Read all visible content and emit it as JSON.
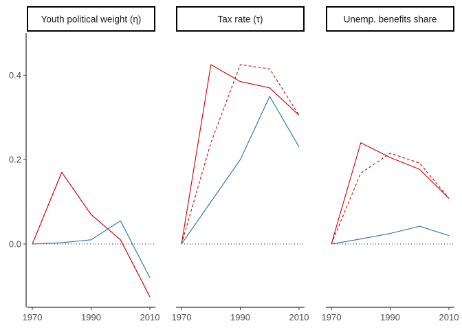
{
  "chart_data": {
    "type": "line",
    "layout": "facets-1x3",
    "x_ticks": [
      1970,
      1990,
      2010
    ],
    "y_ticks": [
      0.0,
      0.2,
      0.4
    ],
    "y_tick_labels": [
      "0.0",
      "0.2",
      "0.4"
    ],
    "xlim": [
      1970,
      2010
    ],
    "ylim": [
      -0.15,
      0.5
    ],
    "reference_line": {
      "y": 0,
      "style": "dotted",
      "color": "#000000"
    },
    "grid": false,
    "legend": "none",
    "series_styles": [
      {
        "color": "#cc0000",
        "dash": "solid"
      },
      {
        "color": "#cc0000",
        "dash": "dashed"
      },
      {
        "color": "#1f6fa8",
        "dash": "solid"
      }
    ],
    "panels": [
      {
        "strip_label": "Youth political weight (η)",
        "x": [
          1970,
          1980,
          1990,
          2000,
          2010
        ],
        "series": [
          {
            "style": 0,
            "values": [
              0.0,
              0.17,
              0.07,
              0.01,
              -0.125
            ]
          },
          {
            "style": 1,
            "values": [
              0.0,
              0.17,
              0.07,
              0.01,
              -0.125
            ]
          },
          {
            "style": 2,
            "values": [
              0.0,
              0.003,
              0.01,
              0.055,
              -0.08
            ]
          }
        ]
      },
      {
        "strip_label": "Tax rate (τ)",
        "x": [
          1970,
          1980,
          1990,
          2000,
          2010
        ],
        "series": [
          {
            "style": 0,
            "values": [
              0.0,
              0.425,
              0.385,
              0.37,
              0.305
            ]
          },
          {
            "style": 1,
            "values": [
              0.0,
              0.24,
              0.425,
              0.415,
              0.305
            ]
          },
          {
            "style": 2,
            "values": [
              0.0,
              0.1,
              0.2,
              0.35,
              0.23
            ]
          }
        ]
      },
      {
        "strip_label": "Unemp. benefits share",
        "x": [
          1970,
          1980,
          1990,
          2000,
          2010
        ],
        "series": [
          {
            "style": 0,
            "values": [
              0.0,
              0.24,
              0.205,
              0.177,
              0.108
            ]
          },
          {
            "style": 1,
            "values": [
              0.0,
              0.168,
              0.215,
              0.192,
              0.108
            ]
          },
          {
            "style": 2,
            "values": [
              0.0,
              0.012,
              0.025,
              0.042,
              0.02
            ]
          }
        ]
      }
    ]
  }
}
